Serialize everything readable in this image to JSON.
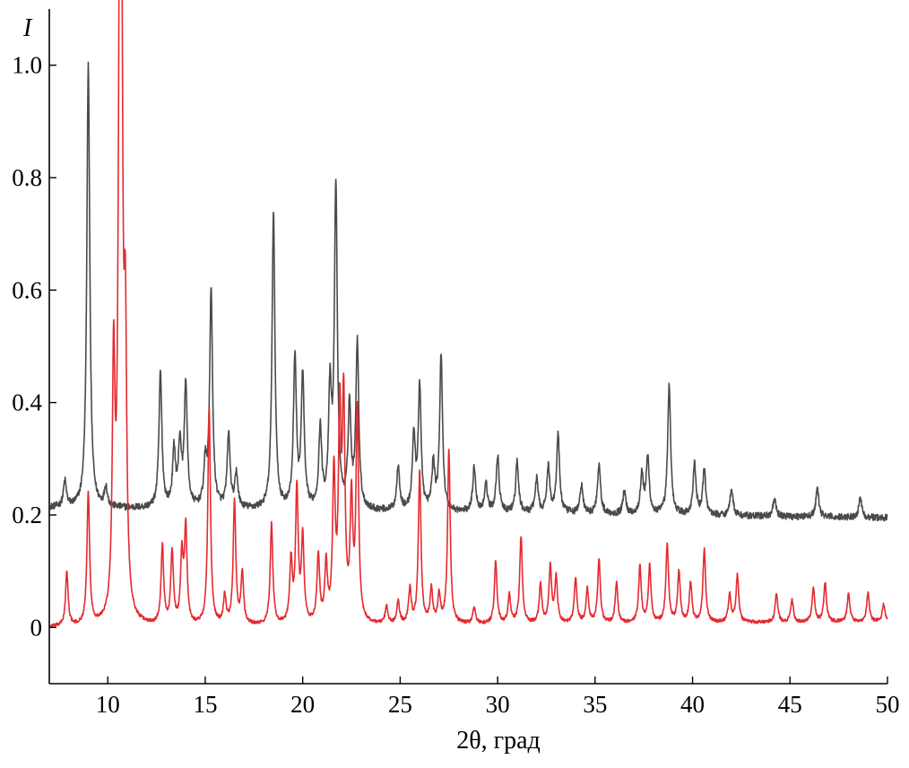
{
  "chart_data": {
    "type": "line",
    "xlabel": "2θ, град",
    "ylabel": "I",
    "xlim": [
      7,
      50
    ],
    "ylim": [
      -0.1,
      1.1
    ],
    "x_ticks": [
      10,
      15,
      20,
      25,
      30,
      35,
      40,
      45,
      50
    ],
    "x_tick_labels": [
      "10",
      "15",
      "20",
      "25",
      "30",
      "35",
      "40",
      "45",
      "50"
    ],
    "y_ticks": [
      0,
      0.2,
      0.4,
      0.6,
      0.8,
      1.0
    ],
    "y_tick_labels": [
      "0",
      "0.2",
      "0.4",
      "0.6",
      "0.8",
      "1.0"
    ],
    "grid": false,
    "series": [
      {
        "color": "#4a4a4a",
        "baseline": 0.213,
        "baseline_end": 0.195,
        "peak_width": 0.09,
        "noise": 0.006,
        "peaks": [
          [
            7.8,
            0.045
          ],
          [
            9.0,
            0.79
          ],
          [
            9.9,
            0.035
          ],
          [
            12.7,
            0.24
          ],
          [
            13.4,
            0.1
          ],
          [
            13.7,
            0.11
          ],
          [
            14.0,
            0.22
          ],
          [
            15.0,
            0.07
          ],
          [
            15.3,
            0.385
          ],
          [
            16.2,
            0.13
          ],
          [
            16.6,
            0.06
          ],
          [
            18.5,
            0.525
          ],
          [
            19.6,
            0.27
          ],
          [
            20.0,
            0.235
          ],
          [
            20.9,
            0.14
          ],
          [
            21.4,
            0.2
          ],
          [
            21.7,
            0.57
          ],
          [
            22.4,
            0.18
          ],
          [
            22.8,
            0.295
          ],
          [
            24.9,
            0.08
          ],
          [
            25.7,
            0.13
          ],
          [
            26.0,
            0.215
          ],
          [
            26.7,
            0.08
          ],
          [
            27.1,
            0.275
          ],
          [
            28.8,
            0.08
          ],
          [
            29.4,
            0.05
          ],
          [
            30.0,
            0.1
          ],
          [
            31.0,
            0.09
          ],
          [
            32.0,
            0.06
          ],
          [
            32.6,
            0.08
          ],
          [
            33.1,
            0.14
          ],
          [
            34.3,
            0.05
          ],
          [
            35.2,
            0.09
          ],
          [
            36.5,
            0.04
          ],
          [
            37.4,
            0.07
          ],
          [
            37.7,
            0.1
          ],
          [
            38.8,
            0.23
          ],
          [
            40.1,
            0.09
          ],
          [
            40.6,
            0.08
          ],
          [
            42.0,
            0.05
          ],
          [
            44.2,
            0.03
          ],
          [
            46.4,
            0.05
          ],
          [
            48.6,
            0.035
          ]
        ]
      },
      {
        "color": "#e52a30",
        "baseline": 0.0,
        "baseline_end": 0.01,
        "peak_width": 0.08,
        "noise": 0.003,
        "peaks": [
          [
            7.9,
            0.095
          ],
          [
            9.0,
            0.235
          ],
          [
            10.3,
            0.44
          ],
          [
            10.6,
            0.865
          ],
          [
            10.7,
            1.0
          ],
          [
            10.9,
            0.46
          ],
          [
            12.8,
            0.14
          ],
          [
            13.3,
            0.13
          ],
          [
            13.8,
            0.12
          ],
          [
            14.0,
            0.17
          ],
          [
            15.2,
            0.385
          ],
          [
            16.0,
            0.05
          ],
          [
            16.5,
            0.22
          ],
          [
            16.9,
            0.09
          ],
          [
            18.4,
            0.18
          ],
          [
            19.4,
            0.11
          ],
          [
            19.7,
            0.24
          ],
          [
            20.0,
            0.15
          ],
          [
            20.8,
            0.12
          ],
          [
            21.2,
            0.1
          ],
          [
            21.6,
            0.26
          ],
          [
            21.9,
            0.355
          ],
          [
            22.1,
            0.38
          ],
          [
            22.5,
            0.21
          ],
          [
            22.8,
            0.375
          ],
          [
            24.3,
            0.03
          ],
          [
            24.9,
            0.04
          ],
          [
            25.5,
            0.06
          ],
          [
            26.0,
            0.27
          ],
          [
            26.6,
            0.06
          ],
          [
            27.0,
            0.05
          ],
          [
            27.5,
            0.31
          ],
          [
            28.8,
            0.03
          ],
          [
            29.9,
            0.11
          ],
          [
            30.6,
            0.05
          ],
          [
            31.2,
            0.155
          ],
          [
            32.2,
            0.07
          ],
          [
            32.7,
            0.1
          ],
          [
            33.0,
            0.08
          ],
          [
            34.0,
            0.08
          ],
          [
            34.6,
            0.06
          ],
          [
            35.2,
            0.115
          ],
          [
            36.1,
            0.07
          ],
          [
            37.3,
            0.1
          ],
          [
            37.8,
            0.1
          ],
          [
            38.7,
            0.14
          ],
          [
            39.3,
            0.09
          ],
          [
            39.9,
            0.07
          ],
          [
            40.6,
            0.13
          ],
          [
            41.9,
            0.05
          ],
          [
            42.3,
            0.085
          ],
          [
            44.3,
            0.05
          ],
          [
            45.1,
            0.04
          ],
          [
            46.2,
            0.06
          ],
          [
            46.8,
            0.07
          ],
          [
            48.0,
            0.05
          ],
          [
            49.0,
            0.05
          ],
          [
            49.8,
            0.03
          ]
        ]
      }
    ]
  }
}
